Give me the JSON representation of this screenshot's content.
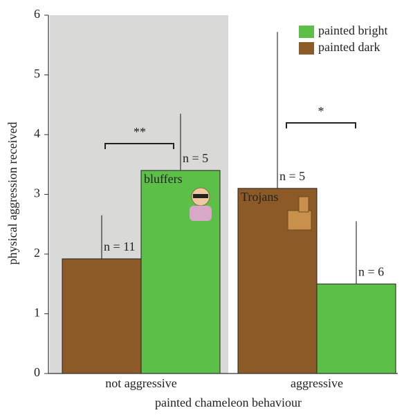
{
  "chart_data": {
    "type": "bar",
    "categories": [
      "not aggressive",
      "aggressive"
    ],
    "x_label": "painted chameleon behaviour",
    "y_label": "physical aggression received",
    "series": [
      {
        "name": "painted bright",
        "color": "#5cbf47",
        "values": [
          3.4,
          1.5
        ],
        "errors": [
          0.95,
          1.05
        ],
        "n_labels": [
          "n = 5",
          "n = 6"
        ],
        "bar_labels": [
          "bluffers",
          null
        ]
      },
      {
        "name": "painted dark",
        "color": "#8b5a26",
        "values": [
          1.92,
          3.1
        ],
        "errors": [
          0.73,
          2.62
        ],
        "n_labels": [
          "n = 11",
          "n = 5"
        ],
        "bar_labels": [
          null,
          "Trojans"
        ]
      }
    ],
    "significance": [
      "**",
      "*"
    ],
    "ylim": [
      0,
      6
    ],
    "yticks": [
      0,
      1,
      2,
      3,
      4,
      5,
      6
    ]
  }
}
